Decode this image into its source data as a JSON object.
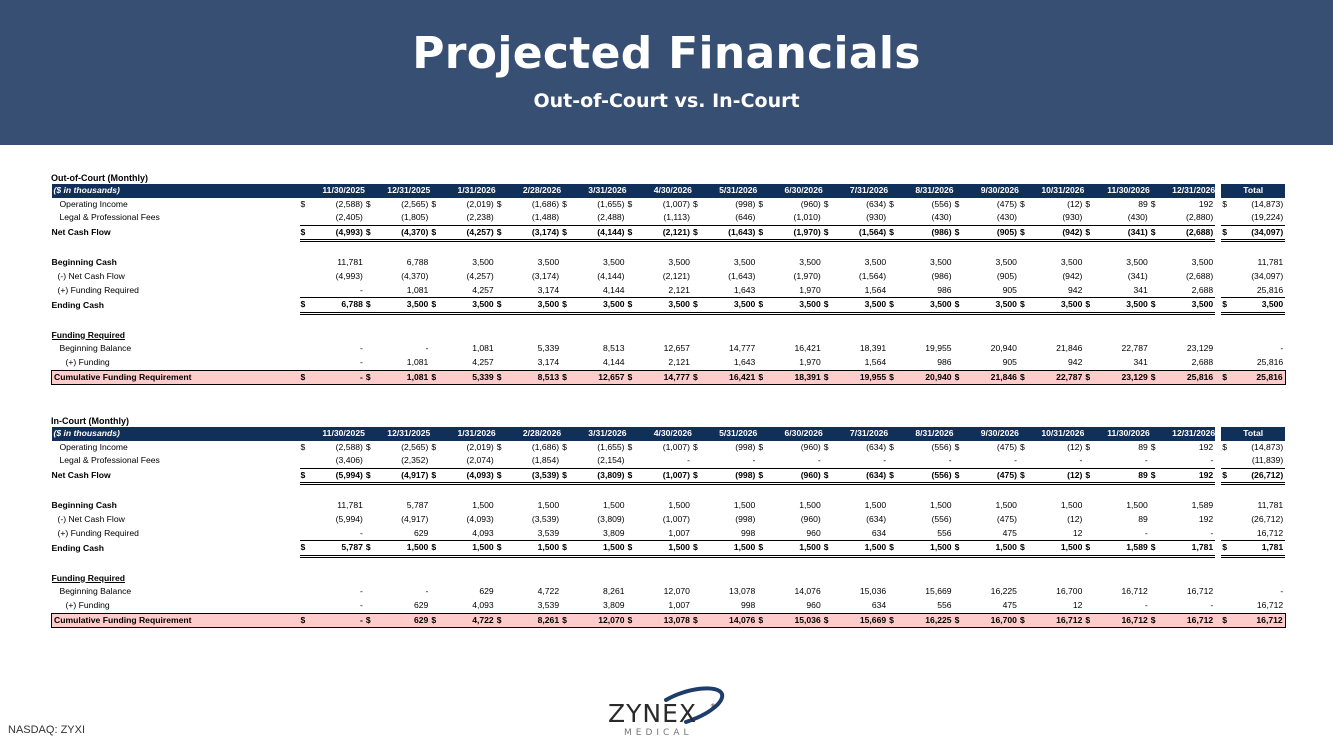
{
  "header": {
    "title": "Projected Financials",
    "subtitle": "Out-of-Court vs. In-Court"
  },
  "columns": [
    "11/30/2025",
    "12/31/2025",
    "1/31/2026",
    "2/28/2026",
    "3/31/2026",
    "4/30/2026",
    "5/31/2026",
    "6/30/2026",
    "7/31/2026",
    "8/31/2026",
    "9/30/2026",
    "10/31/2026",
    "11/30/2026",
    "12/31/2026"
  ],
  "total_label": "Total",
  "units_label": "($ in thousands)",
  "dollar": "$",
  "sections": [
    {
      "title": "Out-of-Court (Monthly)",
      "rows": [
        {
          "label": "Operating Income",
          "style": "ind1",
          "dollar": true,
          "values": [
            "(2,588)",
            "(2,565)",
            "(2,019)",
            "(1,686)",
            "(1,655)",
            "(1,007)",
            "(998)",
            "(960)",
            "(634)",
            "(556)",
            "(475)",
            "(12)",
            "89",
            "192"
          ],
          "total": "(14,873)"
        },
        {
          "label": "Legal & Professional Fees",
          "style": "ind1 uline",
          "dollar": false,
          "values": [
            "(2,405)",
            "(1,805)",
            "(2,238)",
            "(1,488)",
            "(2,488)",
            "(1,113)",
            "(646)",
            "(1,010)",
            "(930)",
            "(430)",
            "(430)",
            "(930)",
            "(430)",
            "(2,880)"
          ],
          "total": "(19,224)"
        },
        {
          "label": "Net Cash Flow",
          "style": "bold dbl",
          "dollar": true,
          "values": [
            "(4,993)",
            "(4,370)",
            "(4,257)",
            "(3,174)",
            "(4,144)",
            "(2,121)",
            "(1,643)",
            "(1,970)",
            "(1,564)",
            "(986)",
            "(905)",
            "(942)",
            "(341)",
            "(2,688)"
          ],
          "total": "(34,097)"
        },
        {
          "label": "",
          "style": "spacer",
          "dollar": false,
          "values": [],
          "total": ""
        },
        {
          "label": "Beginning Cash",
          "style": "bold-label",
          "dollar": false,
          "values": [
            "11,781",
            "6,788",
            "3,500",
            "3,500",
            "3,500",
            "3,500",
            "3,500",
            "3,500",
            "3,500",
            "3,500",
            "3,500",
            "3,500",
            "3,500",
            "3,500"
          ],
          "total": "11,781"
        },
        {
          "label": "(-) Net Cash Flow",
          "style": "ind2",
          "dollar": false,
          "values": [
            "(4,993)",
            "(4,370)",
            "(4,257)",
            "(3,174)",
            "(4,144)",
            "(2,121)",
            "(1,643)",
            "(1,970)",
            "(1,564)",
            "(986)",
            "(905)",
            "(942)",
            "(341)",
            "(2,688)"
          ],
          "total": "(34,097)"
        },
        {
          "label": "(+) Funding Required",
          "style": "ind2 uline",
          "dollar": false,
          "values": [
            "-",
            "1,081",
            "4,257",
            "3,174",
            "4,144",
            "2,121",
            "1,643",
            "1,970",
            "1,564",
            "986",
            "905",
            "942",
            "341",
            "2,688"
          ],
          "total": "25,816"
        },
        {
          "label": "Ending Cash",
          "style": "bold dbl",
          "dollar": true,
          "values": [
            "6,788",
            "3,500",
            "3,500",
            "3,500",
            "3,500",
            "3,500",
            "3,500",
            "3,500",
            "3,500",
            "3,500",
            "3,500",
            "3,500",
            "3,500",
            "3,500"
          ],
          "total": "3,500"
        },
        {
          "label": "",
          "style": "spacer",
          "dollar": false,
          "values": [],
          "total": ""
        },
        {
          "label": "Funding Required",
          "style": "subhead",
          "dollar": false,
          "values": [],
          "total": ""
        },
        {
          "label": "Beginning Balance",
          "style": "ind1",
          "dollar": false,
          "values": [
            "-",
            "-",
            "1,081",
            "5,339",
            "8,513",
            "12,657",
            "14,777",
            "16,421",
            "18,391",
            "19,955",
            "20,940",
            "21,846",
            "22,787",
            "23,129"
          ],
          "total": "-"
        },
        {
          "label": "(+) Funding",
          "style": "ind3 uline",
          "dollar": false,
          "values": [
            "-",
            "1,081",
            "4,257",
            "3,174",
            "4,144",
            "2,121",
            "1,643",
            "1,970",
            "1,564",
            "986",
            "905",
            "942",
            "341",
            "2,688"
          ],
          "total": "25,816"
        },
        {
          "label": "Cumulative Funding Requirement",
          "style": "cum",
          "dollar": true,
          "values": [
            "-",
            "1,081",
            "5,339",
            "8,513",
            "12,657",
            "14,777",
            "16,421",
            "18,391",
            "19,955",
            "20,940",
            "21,846",
            "22,787",
            "23,129",
            "25,816"
          ],
          "total": "25,816"
        }
      ]
    },
    {
      "title": "In-Court (Monthly)",
      "rows": [
        {
          "label": "Operating Income",
          "style": "ind1",
          "dollar": true,
          "values": [
            "(2,588)",
            "(2,565)",
            "(2,019)",
            "(1,686)",
            "(1,655)",
            "(1,007)",
            "(998)",
            "(960)",
            "(634)",
            "(556)",
            "(475)",
            "(12)",
            "89",
            "192"
          ],
          "total": "(14,873)"
        },
        {
          "label": "Legal & Professional Fees",
          "style": "ind1 uline",
          "dollar": false,
          "values": [
            "(3,406)",
            "(2,352)",
            "(2,074)",
            "(1,854)",
            "(2,154)",
            "-",
            "-",
            "-",
            "-",
            "-",
            "-",
            "-",
            "-",
            "-"
          ],
          "total": "(11,839)"
        },
        {
          "label": "Net Cash Flow",
          "style": "bold dbl",
          "dollar": true,
          "values": [
            "(5,994)",
            "(4,917)",
            "(4,093)",
            "(3,539)",
            "(3,809)",
            "(1,007)",
            "(998)",
            "(960)",
            "(634)",
            "(556)",
            "(475)",
            "(12)",
            "89",
            "192"
          ],
          "total": "(26,712)"
        },
        {
          "label": "",
          "style": "spacer",
          "dollar": false,
          "values": [],
          "total": ""
        },
        {
          "label": "Beginning Cash",
          "style": "bold-label",
          "dollar": false,
          "values": [
            "11,781",
            "5,787",
            "1,500",
            "1,500",
            "1,500",
            "1,500",
            "1,500",
            "1,500",
            "1,500",
            "1,500",
            "1,500",
            "1,500",
            "1,500",
            "1,589"
          ],
          "total": "11,781"
        },
        {
          "label": "(-) Net Cash Flow",
          "style": "ind2",
          "dollar": false,
          "values": [
            "(5,994)",
            "(4,917)",
            "(4,093)",
            "(3,539)",
            "(3,809)",
            "(1,007)",
            "(998)",
            "(960)",
            "(634)",
            "(556)",
            "(475)",
            "(12)",
            "89",
            "192"
          ],
          "total": "(26,712)"
        },
        {
          "label": "(+) Funding Required",
          "style": "ind2 uline",
          "dollar": false,
          "values": [
            "-",
            "629",
            "4,093",
            "3,539",
            "3,809",
            "1,007",
            "998",
            "960",
            "634",
            "556",
            "475",
            "12",
            "-",
            "-"
          ],
          "total": "16,712"
        },
        {
          "label": "Ending Cash",
          "style": "bold dbl",
          "dollar": true,
          "values": [
            "5,787",
            "1,500",
            "1,500",
            "1,500",
            "1,500",
            "1,500",
            "1,500",
            "1,500",
            "1,500",
            "1,500",
            "1,500",
            "1,500",
            "1,589",
            "1,781"
          ],
          "total": "1,781"
        },
        {
          "label": "",
          "style": "spacer",
          "dollar": false,
          "values": [],
          "total": ""
        },
        {
          "label": "Funding Required",
          "style": "subhead",
          "dollar": false,
          "values": [],
          "total": ""
        },
        {
          "label": "Beginning Balance",
          "style": "ind1",
          "dollar": false,
          "values": [
            "-",
            "-",
            "629",
            "4,722",
            "8,261",
            "12,070",
            "13,078",
            "14,076",
            "15,036",
            "15,669",
            "16,225",
            "16,700",
            "16,712",
            "16,712"
          ],
          "total": "-"
        },
        {
          "label": "(+) Funding",
          "style": "ind3 uline",
          "dollar": false,
          "values": [
            "-",
            "629",
            "4,093",
            "3,539",
            "3,809",
            "1,007",
            "998",
            "960",
            "634",
            "556",
            "475",
            "12",
            "-",
            "-"
          ],
          "total": "16,712"
        },
        {
          "label": "Cumulative Funding Requirement",
          "style": "cum",
          "dollar": true,
          "values": [
            "-",
            "629",
            "4,722",
            "8,261",
            "12,070",
            "13,078",
            "14,076",
            "15,036",
            "15,669",
            "16,225",
            "16,700",
            "16,712",
            "16,712",
            "16,712"
          ],
          "total": "16,712"
        }
      ]
    }
  ],
  "footer": {
    "ticker": "NASDAQ: ZYXI"
  },
  "logo": {
    "wordmark": "ZYNEX",
    "tagline": "MEDICAL",
    "registered": "®"
  }
}
